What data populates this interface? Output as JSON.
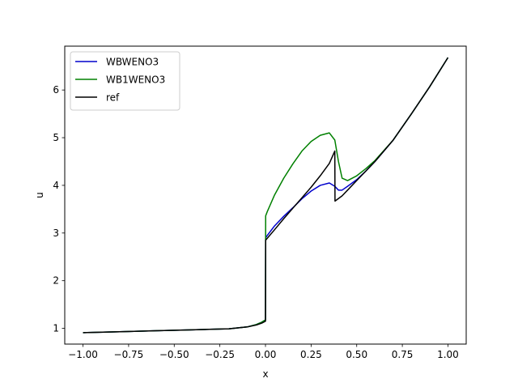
{
  "chart_data": {
    "type": "line",
    "xlabel": "x",
    "ylabel": "u",
    "xlim": [
      -1.1,
      1.1
    ],
    "ylim": [
      0.67,
      6.92
    ],
    "xticks": [
      -1.0,
      -0.75,
      -0.5,
      -0.25,
      0.0,
      0.25,
      0.5,
      0.75,
      1.0
    ],
    "xtick_labels": [
      "−1.00",
      "−0.75",
      "−0.50",
      "−0.25",
      "0.00",
      "0.25",
      "0.50",
      "0.75",
      "1.00"
    ],
    "yticks": [
      1,
      2,
      3,
      4,
      5,
      6
    ],
    "ytick_labels": [
      "1",
      "2",
      "3",
      "4",
      "5",
      "6"
    ],
    "grid": false,
    "legend_position": "top-left",
    "series": [
      {
        "name": "WBWENO3",
        "color": "#0000cc",
        "x": [
          -1.0,
          -0.8,
          -0.6,
          -0.4,
          -0.2,
          -0.1,
          -0.05,
          -0.02,
          0.0,
          0.001,
          0.01,
          0.05,
          0.1,
          0.15,
          0.2,
          0.25,
          0.3,
          0.35,
          0.38,
          0.4,
          0.42,
          0.45,
          0.5,
          0.55,
          0.6,
          0.7,
          0.8,
          0.9,
          1.0
        ],
        "y": [
          0.91,
          0.93,
          0.95,
          0.97,
          0.99,
          1.03,
          1.08,
          1.13,
          1.18,
          2.9,
          2.95,
          3.15,
          3.35,
          3.53,
          3.72,
          3.88,
          4.0,
          4.05,
          3.98,
          3.9,
          3.9,
          3.98,
          4.12,
          4.3,
          4.5,
          4.95,
          5.5,
          6.07,
          6.68
        ]
      },
      {
        "name": "WB1WENO3",
        "color": "#008000",
        "x": [
          -1.0,
          -0.8,
          -0.6,
          -0.4,
          -0.2,
          -0.1,
          -0.05,
          -0.02,
          0.0,
          0.001,
          0.01,
          0.05,
          0.1,
          0.15,
          0.2,
          0.25,
          0.3,
          0.35,
          0.38,
          0.4,
          0.42,
          0.45,
          0.5,
          0.55,
          0.6,
          0.7,
          0.8,
          0.9,
          1.0
        ],
        "y": [
          0.91,
          0.93,
          0.95,
          0.97,
          0.99,
          1.03,
          1.08,
          1.13,
          1.18,
          3.36,
          3.45,
          3.8,
          4.15,
          4.45,
          4.72,
          4.92,
          5.05,
          5.1,
          4.95,
          4.5,
          4.15,
          4.1,
          4.2,
          4.35,
          4.52,
          4.95,
          5.5,
          6.07,
          6.68
        ]
      },
      {
        "name": "ref",
        "color": "#000000",
        "x": [
          -1.0,
          -0.8,
          -0.6,
          -0.4,
          -0.2,
          -0.1,
          -0.05,
          -0.02,
          0.0,
          0.001,
          0.05,
          0.1,
          0.15,
          0.2,
          0.25,
          0.3,
          0.35,
          0.38,
          0.381,
          0.42,
          0.45,
          0.5,
          0.55,
          0.6,
          0.7,
          0.8,
          0.9,
          1.0
        ],
        "y": [
          0.91,
          0.93,
          0.95,
          0.97,
          0.99,
          1.03,
          1.07,
          1.11,
          1.15,
          2.85,
          3.07,
          3.3,
          3.52,
          3.74,
          3.96,
          4.2,
          4.46,
          4.72,
          3.67,
          3.78,
          3.9,
          4.1,
          4.3,
          4.5,
          4.95,
          5.5,
          6.07,
          6.68
        ]
      }
    ]
  }
}
